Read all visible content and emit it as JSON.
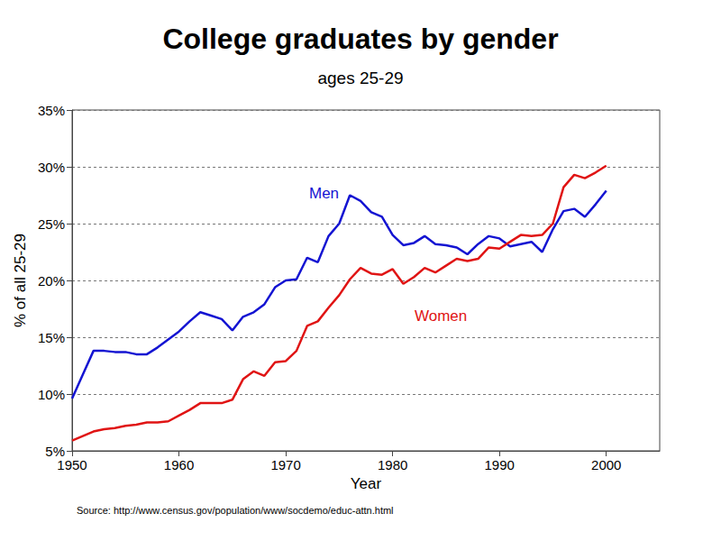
{
  "chart_data": {
    "type": "line",
    "title": "College graduates by gender",
    "subtitle": "ages 25-29",
    "x_label": "Year",
    "y_label": "% of all 25-29",
    "annotations": [
      "Source: http://www.census.gov/population/www/socdemo/educ-attn.html"
    ],
    "x": [
      1950,
      1951,
      1952,
      1953,
      1954,
      1955,
      1956,
      1957,
      1958,
      1959,
      1960,
      1961,
      1962,
      1963,
      1964,
      1965,
      1966,
      1967,
      1968,
      1969,
      1970,
      1971,
      1972,
      1973,
      1974,
      1975,
      1976,
      1977,
      1978,
      1979,
      1980,
      1981,
      1982,
      1983,
      1984,
      1985,
      1986,
      1987,
      1988,
      1989,
      1990,
      1991,
      1992,
      1993,
      1994,
      1995,
      1996,
      1997,
      1998,
      1999,
      2000
    ],
    "series": [
      {
        "name": "Men",
        "color": "#1414d2",
        "values": [
          9.6,
          11.7,
          13.8,
          13.8,
          13.7,
          13.7,
          13.5,
          13.5,
          14.1,
          14.8,
          15.5,
          16.4,
          17.2,
          16.9,
          16.6,
          15.6,
          16.8,
          17.2,
          17.9,
          19.4,
          20.0,
          20.1,
          22.0,
          21.6,
          23.9,
          25.0,
          27.5,
          27.0,
          26.0,
          25.6,
          24.0,
          23.1,
          23.3,
          23.9,
          23.2,
          23.1,
          22.9,
          22.3,
          23.2,
          23.9,
          23.7,
          23.0,
          23.2,
          23.4,
          22.5,
          24.5,
          26.1,
          26.3,
          25.6,
          26.7,
          27.9
        ]
      },
      {
        "name": "Women",
        "color": "#e01414",
        "values": [
          5.9,
          6.3,
          6.7,
          6.9,
          7.0,
          7.2,
          7.3,
          7.5,
          7.5,
          7.6,
          8.1,
          8.6,
          9.2,
          9.2,
          9.2,
          9.5,
          11.3,
          12.0,
          11.6,
          12.8,
          12.9,
          13.8,
          16.0,
          16.4,
          17.6,
          18.7,
          20.1,
          21.1,
          20.6,
          20.5,
          21.0,
          19.7,
          20.3,
          21.1,
          20.7,
          21.3,
          21.9,
          21.7,
          21.9,
          22.9,
          22.8,
          23.4,
          24.0,
          23.9,
          24.0,
          25.0,
          28.2,
          29.3,
          29.0,
          29.5,
          30.1
        ]
      }
    ],
    "xlim": [
      1950,
      2005
    ],
    "xticks": [
      1950,
      1960,
      1970,
      1980,
      1990,
      2000
    ],
    "ylim": [
      5,
      35
    ],
    "yticks": [
      {
        "value": 5,
        "label": "5%"
      },
      {
        "value": 10,
        "label": "10%"
      },
      {
        "value": 15,
        "label": "15%"
      },
      {
        "value": 20,
        "label": "20%"
      },
      {
        "value": 25,
        "label": "25%"
      },
      {
        "value": 30,
        "label": "30%"
      },
      {
        "value": 35,
        "label": "35%"
      }
    ],
    "grid": true
  }
}
